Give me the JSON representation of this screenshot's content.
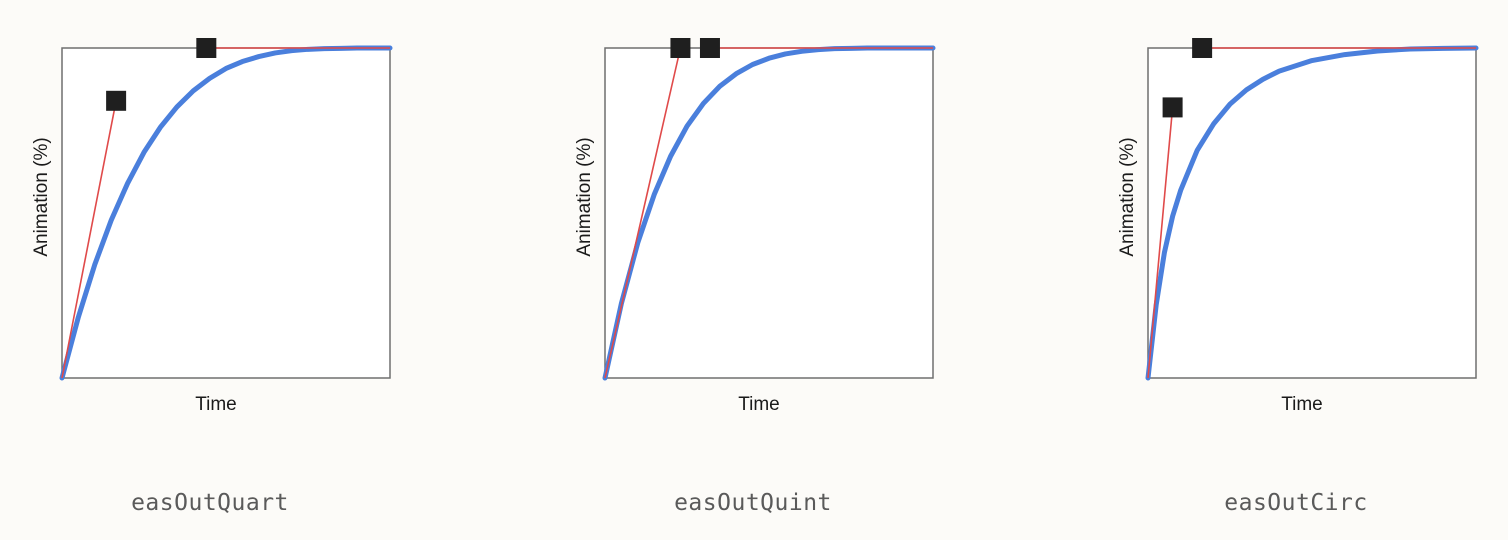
{
  "chart_data": [
    {
      "type": "line",
      "title": "easOutQuart",
      "xlabel": "Time",
      "ylabel": "Animation (%)",
      "xlim": [
        0,
        1
      ],
      "ylim": [
        0,
        1
      ],
      "grid": false,
      "curve_color": "#4a7fdc",
      "handle_color": "#e04a4a",
      "control_points": [
        [
          0.165,
          0.84
        ],
        [
          0.44,
          1.0
        ]
      ],
      "series": [
        {
          "x": [
            0,
            0.05,
            0.1,
            0.15,
            0.2,
            0.25,
            0.3,
            0.35,
            0.4,
            0.45,
            0.5,
            0.55,
            0.6,
            0.65,
            0.7,
            0.75,
            0.8,
            0.85,
            0.9,
            0.95,
            1
          ],
          "values": [
            0,
            0.185,
            0.344,
            0.478,
            0.59,
            0.684,
            0.76,
            0.821,
            0.87,
            0.908,
            0.938,
            0.959,
            0.974,
            0.985,
            0.992,
            0.996,
            0.998,
            0.999,
            1,
            1,
            1
          ]
        }
      ]
    },
    {
      "type": "line",
      "title": "easOutQuint",
      "xlabel": "Time",
      "ylabel": "Animation (%)",
      "xlim": [
        0,
        1
      ],
      "ylim": [
        0,
        1
      ],
      "grid": false,
      "curve_color": "#4a7fdc",
      "handle_color": "#e04a4a",
      "control_points": [
        [
          0.23,
          1.0
        ],
        [
          0.32,
          1.0
        ]
      ],
      "series": [
        {
          "x": [
            0,
            0.05,
            0.1,
            0.15,
            0.2,
            0.25,
            0.3,
            0.35,
            0.4,
            0.45,
            0.5,
            0.55,
            0.6,
            0.65,
            0.7,
            0.75,
            0.8,
            0.85,
            0.9,
            0.95,
            1
          ],
          "values": [
            0,
            0.226,
            0.41,
            0.556,
            0.672,
            0.763,
            0.832,
            0.884,
            0.922,
            0.95,
            0.969,
            0.982,
            0.99,
            0.995,
            0.998,
            0.999,
            1,
            1,
            1,
            1,
            1
          ]
        }
      ]
    },
    {
      "type": "line",
      "title": "easOutCirc",
      "xlabel": "Time",
      "ylabel": "Animation (%)",
      "xlim": [
        0,
        1
      ],
      "ylim": [
        0,
        1
      ],
      "grid": false,
      "curve_color": "#4a7fdc",
      "handle_color": "#e04a4a",
      "control_points": [
        [
          0.075,
          0.82
        ],
        [
          0.165,
          1.0
        ]
      ],
      "series": [
        {
          "x": [
            0,
            0.025,
            0.05,
            0.075,
            0.1,
            0.15,
            0.2,
            0.25,
            0.3,
            0.35,
            0.4,
            0.5,
            0.6,
            0.7,
            0.8,
            0.9,
            1
          ],
          "values": [
            0,
            0.222,
            0.38,
            0.49,
            0.57,
            0.69,
            0.77,
            0.83,
            0.873,
            0.905,
            0.93,
            0.962,
            0.98,
            0.991,
            0.997,
            0.999,
            1
          ]
        }
      ]
    }
  ]
}
